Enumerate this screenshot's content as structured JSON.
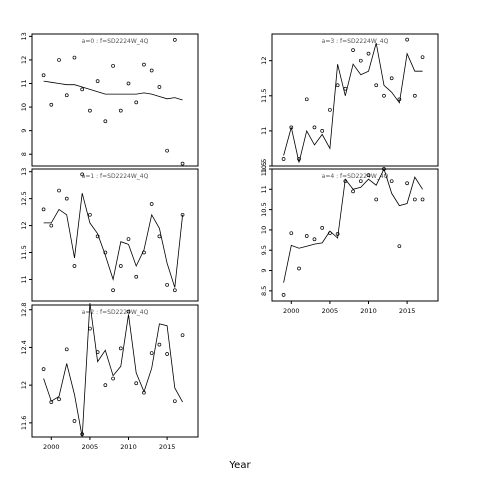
{
  "chart_data": {
    "type": "scatter",
    "xlabel": "Year",
    "xlim": [
      1997.5,
      2019
    ],
    "x_ticks": [
      2000,
      2005,
      2010,
      2015
    ],
    "panels": [
      {
        "strip": "a=0  :  f=SD2224W_4Q",
        "ylim": [
          7.5,
          13.1
        ],
        "y_ticks": [
          8,
          9,
          10,
          11,
          12,
          13
        ],
        "points": {
          "x": [
            1999,
            2000,
            2001,
            2002,
            2003,
            2004,
            2005,
            2006,
            2007,
            2008,
            2009,
            2010,
            2011,
            2012,
            2013,
            2014,
            2015,
            2016,
            2017
          ],
          "y": [
            11.35,
            10.1,
            12.0,
            10.5,
            12.1,
            10.75,
            9.85,
            11.1,
            9.4,
            11.75,
            9.85,
            11.0,
            10.2,
            11.8,
            11.55,
            10.85,
            8.15,
            12.85,
            7.6
          ]
        },
        "line": {
          "x": [
            1999,
            2000,
            2001,
            2002,
            2003,
            2004,
            2005,
            2006,
            2007,
            2008,
            2009,
            2010,
            2011,
            2012,
            2013,
            2014,
            2015,
            2016,
            2017
          ],
          "y": [
            11.1,
            11.05,
            11.0,
            10.95,
            10.95,
            10.85,
            10.75,
            10.65,
            10.55,
            10.55,
            10.55,
            10.55,
            10.55,
            10.6,
            10.55,
            10.45,
            10.35,
            10.4,
            10.3
          ]
        }
      },
      {
        "strip": "a=1  :  f=SD2224W_4Q",
        "ylim": [
          10.6,
          13.05
        ],
        "y_ticks": [
          11.0,
          11.5,
          12.0,
          12.5,
          13.0
        ],
        "points": {
          "x": [
            1999,
            2000,
            2001,
            2002,
            2003,
            2004,
            2005,
            2006,
            2007,
            2008,
            2009,
            2010,
            2011,
            2012,
            2013,
            2014,
            2015,
            2016,
            2017
          ],
          "y": [
            12.3,
            12.0,
            12.65,
            12.5,
            11.25,
            12.95,
            12.2,
            11.8,
            11.5,
            10.8,
            11.25,
            11.75,
            11.05,
            11.5,
            12.4,
            11.8,
            10.9,
            10.8,
            12.2
          ]
        },
        "line": {
          "x": [
            1999,
            2000,
            2001,
            2002,
            2003,
            2004,
            2005,
            2006,
            2007,
            2008,
            2009,
            2010,
            2011,
            2012,
            2013,
            2014,
            2015,
            2016,
            2017
          ],
          "y": [
            12.05,
            12.05,
            12.3,
            12.2,
            11.4,
            12.6,
            12.05,
            11.85,
            11.45,
            11.0,
            11.7,
            11.65,
            11.25,
            11.55,
            12.2,
            11.95,
            11.3,
            10.85,
            12.2
          ]
        }
      },
      {
        "strip": "a=2  :  f=SD2224W_4Q",
        "ylim": [
          11.45,
          12.85
        ],
        "y_ticks": [
          11.6,
          12.0,
          12.4,
          12.8
        ],
        "points": {
          "x": [
            1999,
            2000,
            2001,
            2002,
            2003,
            2004,
            2005,
            2006,
            2007,
            2008,
            2009,
            2010,
            2011,
            2012,
            2013,
            2014,
            2015,
            2016,
            2017
          ],
          "y": [
            12.17,
            11.82,
            11.85,
            12.38,
            11.62,
            11.48,
            12.6,
            12.35,
            12.0,
            12.07,
            12.39,
            12.78,
            12.02,
            11.92,
            12.34,
            12.43,
            12.33,
            11.83,
            12.53
          ]
        },
        "line": {
          "x": [
            1999,
            2000,
            2001,
            2002,
            2003,
            2004,
            2005,
            2006,
            2007,
            2008,
            2009,
            2010,
            2011,
            2012,
            2013,
            2014,
            2015,
            2016,
            2017
          ],
          "y": [
            12.07,
            11.83,
            11.88,
            12.23,
            11.9,
            11.45,
            12.87,
            12.25,
            12.37,
            12.1,
            12.2,
            12.75,
            12.13,
            11.93,
            12.18,
            12.65,
            12.63,
            11.97,
            11.82
          ]
        }
      },
      {
        "strip": "a=3  :  f=SD2224W_4Q",
        "ylim": [
          10.5,
          12.38
        ],
        "y_ticks": [
          10.5,
          11.0,
          11.5,
          12.0
        ],
        "points": {
          "x": [
            1999,
            2000,
            2001,
            2002,
            2003,
            2004,
            2005,
            2006,
            2007,
            2008,
            2009,
            2010,
            2011,
            2012,
            2013,
            2014,
            2015,
            2016,
            2017
          ],
          "y": [
            10.6,
            11.05,
            10.6,
            11.45,
            11.05,
            11.0,
            11.3,
            11.65,
            11.6,
            12.15,
            12.0,
            12.1,
            11.65,
            11.5,
            11.75,
            11.45,
            12.3,
            11.5,
            12.05
          ]
        },
        "line": {
          "x": [
            1999,
            2000,
            2001,
            2002,
            2003,
            2004,
            2005,
            2006,
            2007,
            2008,
            2009,
            2010,
            2011,
            2012,
            2013,
            2014,
            2015,
            2016,
            2017
          ],
          "y": [
            10.65,
            11.05,
            10.55,
            11.0,
            10.8,
            10.95,
            10.75,
            11.95,
            11.5,
            11.95,
            11.8,
            11.85,
            12.25,
            11.65,
            11.55,
            11.4,
            12.1,
            11.85,
            11.85
          ]
        }
      },
      {
        "strip": "a=4  :  f=SD2224W_4Q",
        "ylim": [
          8.25,
          11.5
        ],
        "y_ticks": [
          8.5,
          9.0,
          9.5,
          10.0,
          10.5,
          11.0,
          11.5
        ],
        "points": {
          "x": [
            1999,
            2000,
            2001,
            2002,
            2003,
            2004,
            2005,
            2006,
            2007,
            2008,
            2009,
            2010,
            2011,
            2012,
            2013,
            2014,
            2015,
            2016,
            2017
          ],
          "y": [
            8.4,
            9.92,
            9.05,
            9.85,
            9.77,
            10.05,
            9.92,
            9.9,
            11.2,
            10.95,
            11.2,
            11.35,
            10.75,
            11.5,
            11.2,
            9.6,
            11.15,
            10.75,
            10.75
          ]
        },
        "line": {
          "x": [
            1999,
            2000,
            2001,
            2002,
            2003,
            2004,
            2005,
            2006,
            2007,
            2008,
            2009,
            2010,
            2011,
            2012,
            2013,
            2014,
            2015,
            2016,
            2017
          ],
          "y": [
            8.7,
            9.62,
            9.55,
            9.6,
            9.65,
            9.68,
            9.97,
            9.8,
            11.25,
            11.0,
            11.05,
            11.25,
            11.1,
            11.5,
            10.9,
            10.6,
            10.65,
            11.3,
            11.0
          ]
        }
      }
    ]
  }
}
